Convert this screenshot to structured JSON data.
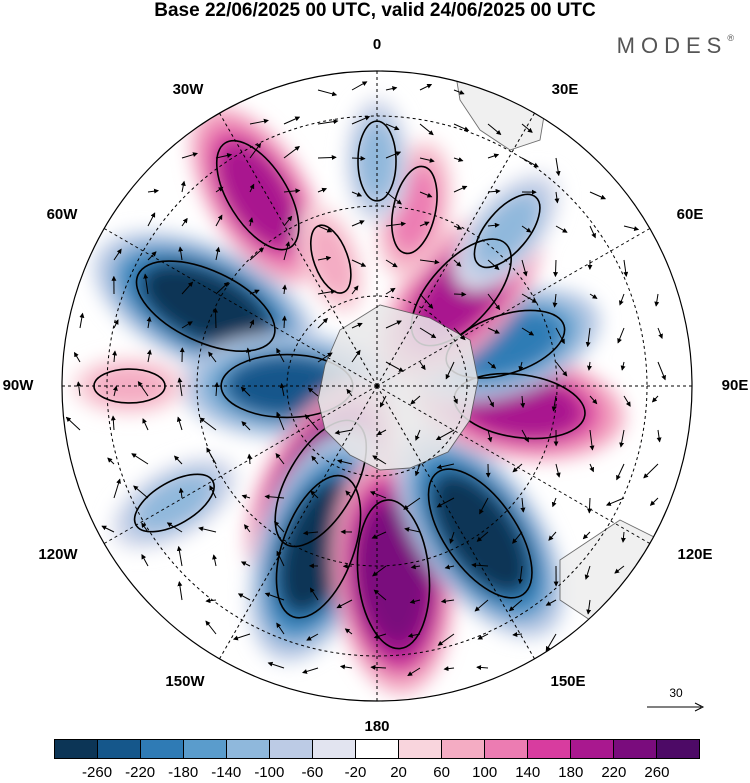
{
  "header": {
    "title": "Base 22/06/2025 00 UTC, valid 24/06/2025 00 UTC",
    "brand": "MODES",
    "brand_mark": "®"
  },
  "map": {
    "projection": "polar-stereographic",
    "pole": "south",
    "longitude_labels": [
      "0",
      "30E",
      "60E",
      "90E",
      "120E",
      "150E",
      "180",
      "150W",
      "120W",
      "90W",
      "60W",
      "30W"
    ],
    "anomaly_centres": [
      {
        "lon": -65,
        "lat": -48,
        "value": -260
      },
      {
        "lon": -90,
        "lat": -70,
        "value": -220
      },
      {
        "lon": -150,
        "lat": -65,
        "value": 240
      },
      {
        "lon": -160,
        "lat": -52,
        "value": -260
      },
      {
        "lon": 175,
        "lat": -48,
        "value": 260
      },
      {
        "lon": 145,
        "lat": -50,
        "value": -260
      },
      {
        "lon": 98,
        "lat": -58,
        "value": 220
      },
      {
        "lon": 72,
        "lat": -60,
        "value": -200
      },
      {
        "lon": 42,
        "lat": -62,
        "value": 220
      },
      {
        "lon": 40,
        "lat": -45,
        "value": -120
      },
      {
        "lon": 12,
        "lat": -50,
        "value": 120
      },
      {
        "lon": -32,
        "lat": -40,
        "value": 200
      },
      {
        "lon": 0,
        "lat": -40,
        "value": -100
      },
      {
        "lon": -90,
        "lat": -35,
        "value": 80
      },
      {
        "lon": -120,
        "lat": -38,
        "value": -120
      },
      {
        "lon": -20,
        "lat": -60,
        "value": 80
      }
    ]
  },
  "reference_vector": {
    "value": "30"
  },
  "colorbar": {
    "ticks": [
      "-260",
      "-220",
      "-180",
      "-140",
      "-100",
      "-60",
      "-20",
      "20",
      "60",
      "100",
      "140",
      "180",
      "220",
      "260"
    ],
    "colors": [
      "#0c3556",
      "#15578b",
      "#2f7bb5",
      "#5a9ccc",
      "#8fb8dc",
      "#bccbe5",
      "#e2e4f0",
      "#ffffff",
      "#f9d5dd",
      "#f4acc3",
      "#ec7cb2",
      "#d83c9f",
      "#a9188f",
      "#7a0c7d",
      "#4d0a66"
    ]
  }
}
